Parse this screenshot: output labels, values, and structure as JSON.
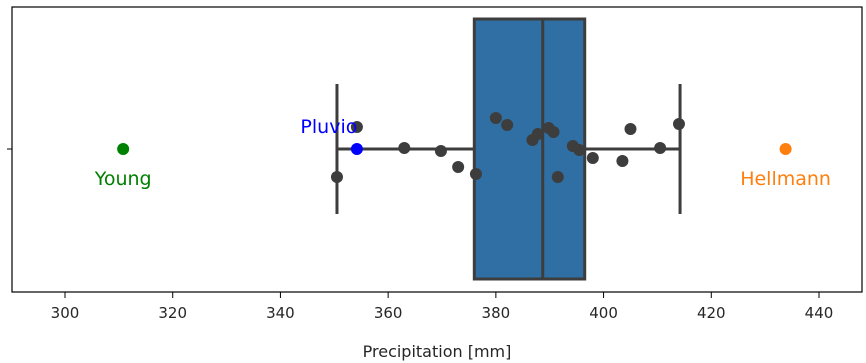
{
  "chart_data": {
    "type": "box",
    "title": "",
    "xlabel": "Precipitation [mm]",
    "ylabel": "",
    "xlim": [
      290,
      448
    ],
    "x_ticks": [
      300,
      320,
      340,
      360,
      380,
      400,
      420,
      440
    ],
    "grid": false,
    "box": {
      "whisker_low": 350.5,
      "q1": 376,
      "median": 388.7,
      "q3": 396.5,
      "whisker_high": 414.2,
      "fill_color": "#2f6fa3",
      "line_color": "#3d3d3d"
    },
    "points": {
      "color": "#3d3d3d",
      "values": [
        {
          "x": 350.5,
          "offset": -0.28
        },
        {
          "x": 354.2,
          "offset": 0.22
        },
        {
          "x": 363.0,
          "offset": 0.01
        },
        {
          "x": 369.8,
          "offset": -0.02
        },
        {
          "x": 373.0,
          "offset": -0.18
        },
        {
          "x": 376.3,
          "offset": -0.25
        },
        {
          "x": 380.0,
          "offset": 0.31
        },
        {
          "x": 382.1,
          "offset": 0.24
        },
        {
          "x": 386.8,
          "offset": 0.09
        },
        {
          "x": 387.8,
          "offset": 0.15
        },
        {
          "x": 389.8,
          "offset": 0.21
        },
        {
          "x": 390.7,
          "offset": 0.17
        },
        {
          "x": 391.5,
          "offset": -0.28
        },
        {
          "x": 394.3,
          "offset": 0.03
        },
        {
          "x": 395.5,
          "offset": -0.01
        },
        {
          "x": 398.0,
          "offset": -0.09
        },
        {
          "x": 403.5,
          "offset": -0.12
        },
        {
          "x": 405.0,
          "offset": 0.2
        },
        {
          "x": 410.5,
          "offset": 0.01
        },
        {
          "x": 414.0,
          "offset": 0.25
        }
      ]
    },
    "annotations": [
      {
        "label": "Young",
        "x": 310.8,
        "color": "#008000",
        "text_position": "below"
      },
      {
        "label": "Pluvio",
        "x": 354.2,
        "color": "#0000ff",
        "text_position": "above-left"
      },
      {
        "label": "Hellmann",
        "x": 433.8,
        "color": "#ff7f0e",
        "text_position": "below"
      }
    ]
  }
}
